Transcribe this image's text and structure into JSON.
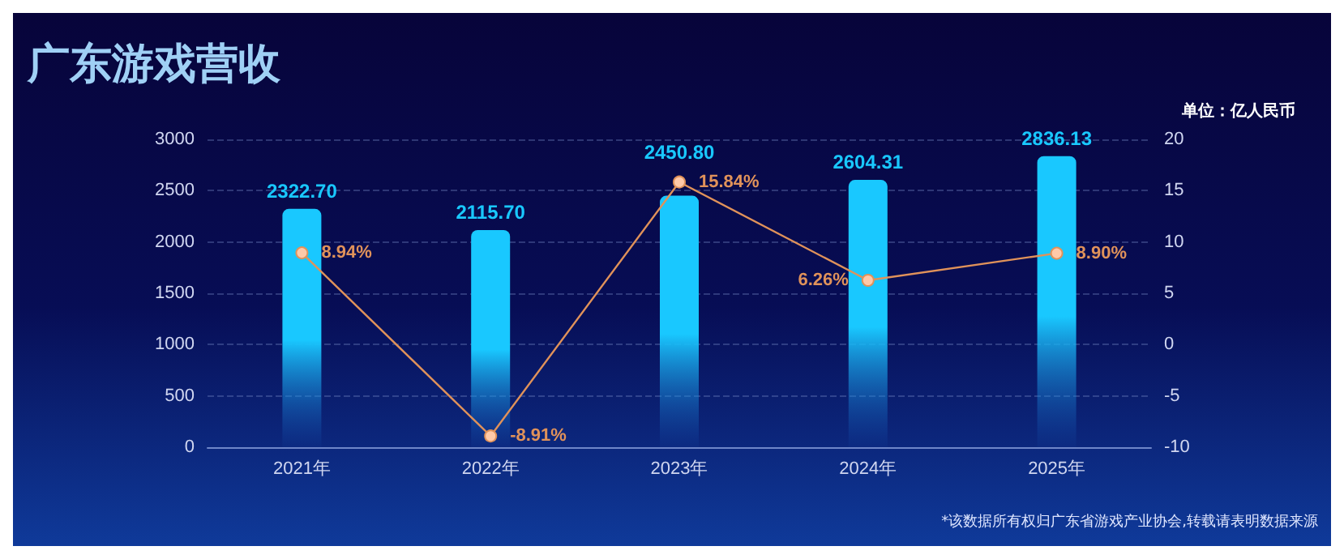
{
  "chart_data": {
    "type": "bar",
    "title": "广东游戏营收",
    "annotations": [
      "单位：亿人民币",
      "*该数据所有权归广东省游戏产业协会,转载请表明数据来源"
    ],
    "categories": [
      "2021年",
      "2022年",
      "2023年",
      "2024年",
      "2025年"
    ],
    "series": [
      {
        "type": "bar",
        "color": "#19c8ff",
        "values": [
          2322.7,
          2115.7,
          2450.8,
          2604.31,
          2836.13
        ],
        "value_labels": [
          "2322.70",
          "2115.70",
          "2450.80",
          "2604.31",
          "2836.13"
        ]
      },
      {
        "type": "line",
        "axis": "y2",
        "color": "#e0925a",
        "values": [
          8.94,
          -8.91,
          15.84,
          6.26,
          8.9
        ],
        "value_labels": [
          "8.94%",
          "-8.91%",
          "15.84%",
          "6.26%",
          "8.90%"
        ]
      }
    ],
    "ylim": [
      0,
      3000
    ],
    "yticks": [
      0,
      500,
      1000,
      1500,
      2000,
      2500,
      3000
    ],
    "y2lim": [
      -10,
      20
    ],
    "y2ticks": [
      -10,
      -5,
      0,
      5,
      10,
      15,
      20
    ],
    "grid": "y",
    "marker": "circle",
    "line_style": "solid"
  }
}
